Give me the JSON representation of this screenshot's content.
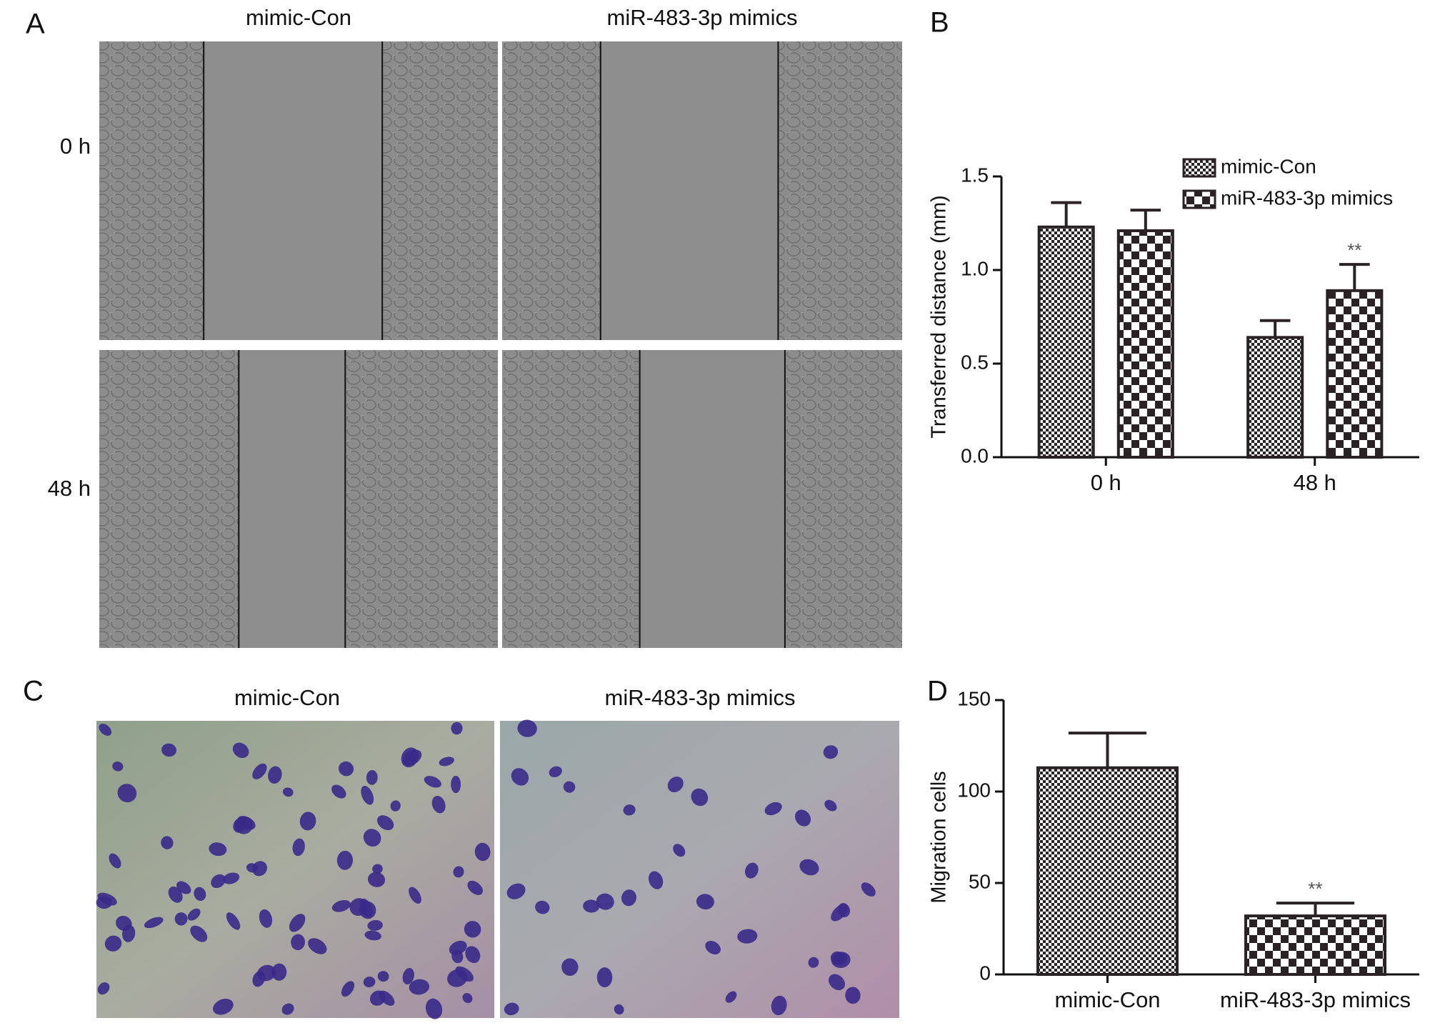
{
  "figure": {
    "panel_labels": [
      "A",
      "B",
      "C",
      "D"
    ],
    "wound_columns": [
      "mimic-Con",
      "miR-483-3p mimics"
    ],
    "wound_rows": [
      "0 h",
      "48 h"
    ],
    "transwell_columns": [
      "mimic-Con",
      "miR-483-3p mimics"
    ]
  },
  "chart_data": [
    {
      "type": "grouped-bar",
      "ylabel": "Transferred distance (mm)",
      "categories": [
        "0 h",
        "48 h"
      ],
      "series": [
        {
          "name": "mimic-Con",
          "color": "#2a2224",
          "pattern": "fine-check",
          "values": [
            1.23,
            0.64
          ],
          "errors": [
            0.13,
            0.09
          ],
          "significance": [
            null,
            null
          ]
        },
        {
          "name": "miR-483-3p mimics",
          "color": "#2a2224",
          "pattern": "coarse-check",
          "values": [
            1.21,
            0.89
          ],
          "errors": [
            0.11,
            0.14
          ],
          "significance": [
            null,
            "**"
          ]
        }
      ],
      "ylim": [
        0,
        1.5
      ],
      "yticks": [
        {
          "value": 0,
          "label": "0.0"
        },
        0.5,
        {
          "value": 1,
          "label": "1.0"
        },
        1.5
      ],
      "legend": "top-right"
    },
    {
      "type": "bar",
      "ylabel": "Migration cells",
      "categories": [
        "mimic-Con",
        "miR-483-3p mimics"
      ],
      "values": [
        113,
        32
      ],
      "errors": [
        19,
        7
      ],
      "significance": [
        null,
        "**"
      ],
      "color": "#2a2224",
      "patterns": [
        "fine-check",
        "coarse-check"
      ],
      "ylim": [
        0,
        150
      ],
      "yticks": [
        0,
        50,
        100,
        150
      ]
    }
  ]
}
